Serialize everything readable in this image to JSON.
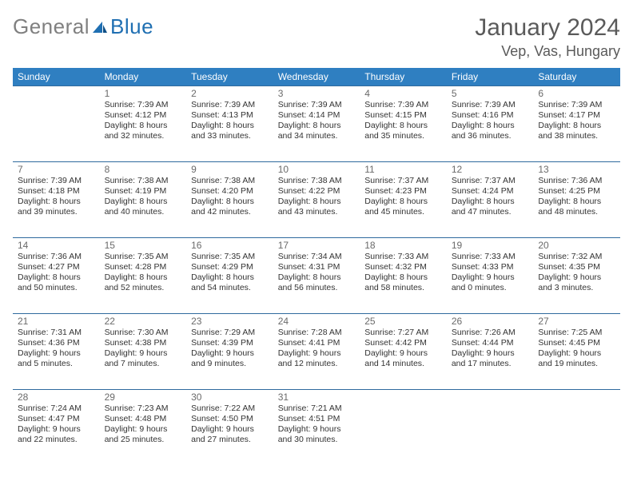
{
  "brand": {
    "word1": "General",
    "word2": "Blue"
  },
  "title": "January 2024",
  "location": "Vep, Vas, Hungary",
  "colors": {
    "header_bg": "#2f7fc1",
    "header_text": "#ffffff",
    "row_border": "#2f6a9e",
    "text": "#333333",
    "muted": "#6a6a6a",
    "title_color": "#5a5a5a",
    "logo_gray": "#808080",
    "logo_blue": "#1f6fb2",
    "page_bg": "#ffffff"
  },
  "typography": {
    "title_fontsize": 30,
    "location_fontsize": 18,
    "header_fontsize": 12,
    "daynum_fontsize": 12,
    "body_fontsize": 10.5
  },
  "days_of_week": [
    "Sunday",
    "Monday",
    "Tuesday",
    "Wednesday",
    "Thursday",
    "Friday",
    "Saturday"
  ],
  "weeks": [
    [
      null,
      {
        "n": "1",
        "sunrise": "7:39 AM",
        "sunset": "4:12 PM",
        "daylight": "8 hours and 32 minutes."
      },
      {
        "n": "2",
        "sunrise": "7:39 AM",
        "sunset": "4:13 PM",
        "daylight": "8 hours and 33 minutes."
      },
      {
        "n": "3",
        "sunrise": "7:39 AM",
        "sunset": "4:14 PM",
        "daylight": "8 hours and 34 minutes."
      },
      {
        "n": "4",
        "sunrise": "7:39 AM",
        "sunset": "4:15 PM",
        "daylight": "8 hours and 35 minutes."
      },
      {
        "n": "5",
        "sunrise": "7:39 AM",
        "sunset": "4:16 PM",
        "daylight": "8 hours and 36 minutes."
      },
      {
        "n": "6",
        "sunrise": "7:39 AM",
        "sunset": "4:17 PM",
        "daylight": "8 hours and 38 minutes."
      }
    ],
    [
      {
        "n": "7",
        "sunrise": "7:39 AM",
        "sunset": "4:18 PM",
        "daylight": "8 hours and 39 minutes."
      },
      {
        "n": "8",
        "sunrise": "7:38 AM",
        "sunset": "4:19 PM",
        "daylight": "8 hours and 40 minutes."
      },
      {
        "n": "9",
        "sunrise": "7:38 AM",
        "sunset": "4:20 PM",
        "daylight": "8 hours and 42 minutes."
      },
      {
        "n": "10",
        "sunrise": "7:38 AM",
        "sunset": "4:22 PM",
        "daylight": "8 hours and 43 minutes."
      },
      {
        "n": "11",
        "sunrise": "7:37 AM",
        "sunset": "4:23 PM",
        "daylight": "8 hours and 45 minutes."
      },
      {
        "n": "12",
        "sunrise": "7:37 AM",
        "sunset": "4:24 PM",
        "daylight": "8 hours and 47 minutes."
      },
      {
        "n": "13",
        "sunrise": "7:36 AM",
        "sunset": "4:25 PM",
        "daylight": "8 hours and 48 minutes."
      }
    ],
    [
      {
        "n": "14",
        "sunrise": "7:36 AM",
        "sunset": "4:27 PM",
        "daylight": "8 hours and 50 minutes."
      },
      {
        "n": "15",
        "sunrise": "7:35 AM",
        "sunset": "4:28 PM",
        "daylight": "8 hours and 52 minutes."
      },
      {
        "n": "16",
        "sunrise": "7:35 AM",
        "sunset": "4:29 PM",
        "daylight": "8 hours and 54 minutes."
      },
      {
        "n": "17",
        "sunrise": "7:34 AM",
        "sunset": "4:31 PM",
        "daylight": "8 hours and 56 minutes."
      },
      {
        "n": "18",
        "sunrise": "7:33 AM",
        "sunset": "4:32 PM",
        "daylight": "8 hours and 58 minutes."
      },
      {
        "n": "19",
        "sunrise": "7:33 AM",
        "sunset": "4:33 PM",
        "daylight": "9 hours and 0 minutes."
      },
      {
        "n": "20",
        "sunrise": "7:32 AM",
        "sunset": "4:35 PM",
        "daylight": "9 hours and 3 minutes."
      }
    ],
    [
      {
        "n": "21",
        "sunrise": "7:31 AM",
        "sunset": "4:36 PM",
        "daylight": "9 hours and 5 minutes."
      },
      {
        "n": "22",
        "sunrise": "7:30 AM",
        "sunset": "4:38 PM",
        "daylight": "9 hours and 7 minutes."
      },
      {
        "n": "23",
        "sunrise": "7:29 AM",
        "sunset": "4:39 PM",
        "daylight": "9 hours and 9 minutes."
      },
      {
        "n": "24",
        "sunrise": "7:28 AM",
        "sunset": "4:41 PM",
        "daylight": "9 hours and 12 minutes."
      },
      {
        "n": "25",
        "sunrise": "7:27 AM",
        "sunset": "4:42 PM",
        "daylight": "9 hours and 14 minutes."
      },
      {
        "n": "26",
        "sunrise": "7:26 AM",
        "sunset": "4:44 PM",
        "daylight": "9 hours and 17 minutes."
      },
      {
        "n": "27",
        "sunrise": "7:25 AM",
        "sunset": "4:45 PM",
        "daylight": "9 hours and 19 minutes."
      }
    ],
    [
      {
        "n": "28",
        "sunrise": "7:24 AM",
        "sunset": "4:47 PM",
        "daylight": "9 hours and 22 minutes."
      },
      {
        "n": "29",
        "sunrise": "7:23 AM",
        "sunset": "4:48 PM",
        "daylight": "9 hours and 25 minutes."
      },
      {
        "n": "30",
        "sunrise": "7:22 AM",
        "sunset": "4:50 PM",
        "daylight": "9 hours and 27 minutes."
      },
      {
        "n": "31",
        "sunrise": "7:21 AM",
        "sunset": "4:51 PM",
        "daylight": "9 hours and 30 minutes."
      },
      null,
      null,
      null
    ]
  ],
  "labels": {
    "sunrise_prefix": "Sunrise: ",
    "sunset_prefix": "Sunset: ",
    "daylight_prefix": "Daylight: "
  }
}
